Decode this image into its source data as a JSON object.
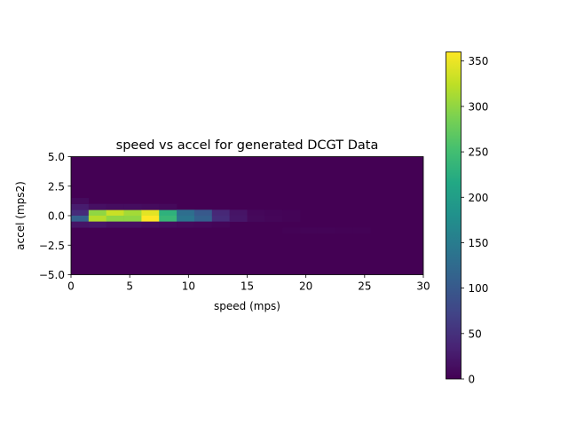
{
  "chart_data": {
    "type": "heatmap",
    "title": "speed vs accel for generated DCGT Data",
    "xlabel": "speed (mps)",
    "ylabel": "accel (mps2)",
    "xlim": [
      0,
      30
    ],
    "ylim": [
      -5,
      5
    ],
    "x_ticks": [
      "0",
      "5",
      "10",
      "15",
      "20",
      "25",
      "30"
    ],
    "y_ticks": [
      "5.0",
      "2.5",
      "0.0",
      "−2.5",
      "−5.0"
    ],
    "colormap": "viridis",
    "colorbar": {
      "min": 0,
      "max": 360,
      "ticks": [
        "0",
        "50",
        "100",
        "150",
        "200",
        "250",
        "300",
        "350"
      ]
    },
    "bins": {
      "x_count": 20,
      "y_count": 20
    },
    "cells": [
      {
        "x": [
          0,
          1.5
        ],
        "y": [
          0,
          0.5
        ],
        "value": 45
      },
      {
        "x": [
          0,
          1.5
        ],
        "y": [
          -0.5,
          0
        ],
        "value": 110
      },
      {
        "x": [
          0,
          1.5
        ],
        "y": [
          0.5,
          1.0
        ],
        "value": 28
      },
      {
        "x": [
          0,
          1.5
        ],
        "y": [
          -1.0,
          -0.5
        ],
        "value": 20
      },
      {
        "x": [
          0,
          1.5
        ],
        "y": [
          1.0,
          1.5
        ],
        "value": 10
      },
      {
        "x": [
          1.5,
          3.0
        ],
        "y": [
          0,
          0.5
        ],
        "value": 300
      },
      {
        "x": [
          1.5,
          3.0
        ],
        "y": [
          -0.5,
          0
        ],
        "value": 320
      },
      {
        "x": [
          1.5,
          3.0
        ],
        "y": [
          0.5,
          1.0
        ],
        "value": 15
      },
      {
        "x": [
          1.5,
          3.0
        ],
        "y": [
          -1.0,
          -0.5
        ],
        "value": 22
      },
      {
        "x": [
          3.0,
          4.5
        ],
        "y": [
          0,
          0.5
        ],
        "value": 330
      },
      {
        "x": [
          3.0,
          4.5
        ],
        "y": [
          -0.5,
          0
        ],
        "value": 300
      },
      {
        "x": [
          3.0,
          4.5
        ],
        "y": [
          0.5,
          1.0
        ],
        "value": 12
      },
      {
        "x": [
          3.0,
          4.5
        ],
        "y": [
          -1.0,
          -0.5
        ],
        "value": 15
      },
      {
        "x": [
          4.5,
          6.0
        ],
        "y": [
          0,
          0.5
        ],
        "value": 310
      },
      {
        "x": [
          4.5,
          6.0
        ],
        "y": [
          -0.5,
          0
        ],
        "value": 300
      },
      {
        "x": [
          4.5,
          6.0
        ],
        "y": [
          0.5,
          1.0
        ],
        "value": 12
      },
      {
        "x": [
          4.5,
          6.0
        ],
        "y": [
          -1.0,
          -0.5
        ],
        "value": 15
      },
      {
        "x": [
          6.0,
          7.5
        ],
        "y": [
          0,
          0.5
        ],
        "value": 345
      },
      {
        "x": [
          6.0,
          7.5
        ],
        "y": [
          -0.5,
          0
        ],
        "value": 360
      },
      {
        "x": [
          6.0,
          7.5
        ],
        "y": [
          0.5,
          1.0
        ],
        "value": 10
      },
      {
        "x": [
          6.0,
          7.5
        ],
        "y": [
          -1.0,
          -0.5
        ],
        "value": 12
      },
      {
        "x": [
          7.5,
          9.0
        ],
        "y": [
          0,
          0.5
        ],
        "value": 230
      },
      {
        "x": [
          7.5,
          9.0
        ],
        "y": [
          -0.5,
          0
        ],
        "value": 240
      },
      {
        "x": [
          7.5,
          9.0
        ],
        "y": [
          0.5,
          1.0
        ],
        "value": 8
      },
      {
        "x": [
          7.5,
          9.0
        ],
        "y": [
          -1.0,
          -0.5
        ],
        "value": 10
      },
      {
        "x": [
          9.0,
          10.5
        ],
        "y": [
          0,
          0.5
        ],
        "value": 130
      },
      {
        "x": [
          9.0,
          10.5
        ],
        "y": [
          -0.5,
          0
        ],
        "value": 140
      },
      {
        "x": [
          9.0,
          10.5
        ],
        "y": [
          -1.0,
          -0.5
        ],
        "value": 8
      },
      {
        "x": [
          10.5,
          12.0
        ],
        "y": [
          0,
          0.5
        ],
        "value": 100
      },
      {
        "x": [
          10.5,
          12.0
        ],
        "y": [
          -0.5,
          0
        ],
        "value": 110
      },
      {
        "x": [
          10.5,
          12.0
        ],
        "y": [
          -1.0,
          -0.5
        ],
        "value": 6
      },
      {
        "x": [
          12.0,
          13.5
        ],
        "y": [
          0,
          0.5
        ],
        "value": 40
      },
      {
        "x": [
          12.0,
          13.5
        ],
        "y": [
          -0.5,
          0
        ],
        "value": 45
      },
      {
        "x": [
          12.0,
          13.5
        ],
        "y": [
          -1.0,
          -0.5
        ],
        "value": 4
      },
      {
        "x": [
          13.5,
          15.0
        ],
        "y": [
          0,
          0.5
        ],
        "value": 20
      },
      {
        "x": [
          13.5,
          15.0
        ],
        "y": [
          -0.5,
          0
        ],
        "value": 22
      },
      {
        "x": [
          15.0,
          16.5
        ],
        "y": [
          0,
          0.5
        ],
        "value": 6
      },
      {
        "x": [
          15.0,
          16.5
        ],
        "y": [
          -0.5,
          0
        ],
        "value": 8
      },
      {
        "x": [
          16.5,
          18.0
        ],
        "y": [
          0,
          0.5
        ],
        "value": 4
      },
      {
        "x": [
          16.5,
          18.0
        ],
        "y": [
          -0.5,
          0
        ],
        "value": 5
      },
      {
        "x": [
          18.0,
          19.5
        ],
        "y": [
          0,
          0.5
        ],
        "value": 3
      },
      {
        "x": [
          18.0,
          19.5
        ],
        "y": [
          -0.5,
          0
        ],
        "value": 3
      },
      {
        "x": [
          18.0,
          19.5
        ],
        "y": [
          -1.5,
          -1.0
        ],
        "value": 2
      },
      {
        "x": [
          19.5,
          21.0
        ],
        "y": [
          -1.5,
          -1.0
        ],
        "value": 3
      },
      {
        "x": [
          21.0,
          22.5
        ],
        "y": [
          -1.5,
          -1.0
        ],
        "value": 3
      },
      {
        "x": [
          22.5,
          24.0
        ],
        "y": [
          -1.5,
          -1.0
        ],
        "value": 2
      },
      {
        "x": [
          24.0,
          25.5
        ],
        "y": [
          -1.5,
          -1.0
        ],
        "value": 2
      }
    ]
  }
}
